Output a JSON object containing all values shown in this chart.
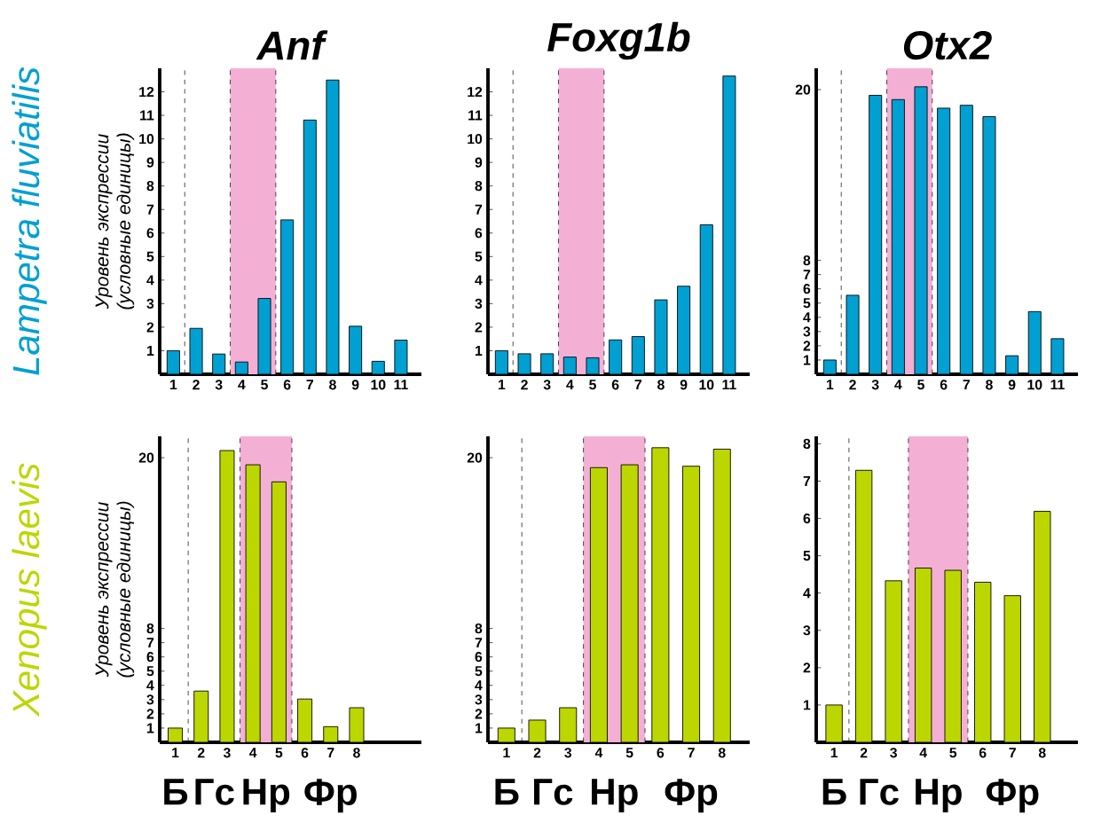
{
  "chart_data": [
    {
      "type": "bar",
      "title": "Anf",
      "ylabel": "Уровень экспрессии\n(условные единицы)",
      "x": [
        1,
        2,
        3,
        4,
        5,
        6,
        7,
        8,
        9,
        10,
        11
      ],
      "values": [
        1.0,
        1.95,
        0.86,
        0.52,
        3.22,
        6.56,
        10.8,
        12.5,
        2.04,
        0.55,
        1.45
      ],
      "color": "#00a0d2",
      "xlim": [
        0.4,
        11.9
      ],
      "ylim": [
        0,
        13
      ],
      "xticks": [
        1,
        2,
        3,
        4,
        5,
        6,
        7,
        8,
        9,
        10,
        11
      ],
      "yticks": [
        1,
        2,
        3,
        4,
        5,
        6,
        7,
        8,
        9,
        10,
        11,
        12
      ],
      "bands": [
        {
          "axis": "x",
          "from": 3.5,
          "to": 5.5,
          "color": "#f4b0d4"
        }
      ],
      "ref_lines": [
        {
          "axis": "x",
          "value": 1.5,
          "line_style": "dashed"
        },
        {
          "axis": "x",
          "value": 3.5,
          "line_style": "dashed"
        },
        {
          "axis": "x",
          "value": 5.5,
          "line_style": "dashed"
        }
      ],
      "annotations": [
        "Lampetra fluviatilis"
      ]
    },
    {
      "type": "bar",
      "title": "Foxg1b",
      "x": [
        1,
        2,
        3,
        4,
        5,
        6,
        7,
        8,
        9,
        10,
        11
      ],
      "values": [
        1.0,
        0.87,
        0.87,
        0.73,
        0.7,
        1.46,
        1.6,
        3.16,
        3.74,
        6.35,
        12.67
      ],
      "color": "#00a0d2",
      "xlim": [
        0.4,
        11.9
      ],
      "ylim": [
        0,
        13
      ],
      "xticks": [
        1,
        2,
        3,
        4,
        5,
        6,
        7,
        8,
        9,
        10,
        11
      ],
      "yticks": [
        1,
        2,
        3,
        4,
        5,
        6,
        7,
        8,
        9,
        10,
        11,
        12
      ],
      "bands": [
        {
          "axis": "x",
          "from": 3.5,
          "to": 5.5,
          "color": "#f4b0d4"
        }
      ],
      "ref_lines": [
        {
          "axis": "x",
          "value": 1.5,
          "line_style": "dashed"
        },
        {
          "axis": "x",
          "value": 3.5,
          "line_style": "dashed"
        },
        {
          "axis": "x",
          "value": 5.5,
          "line_style": "dashed"
        }
      ]
    },
    {
      "type": "bar",
      "title": "Otx2",
      "x": [
        1,
        2,
        3,
        4,
        5,
        6,
        7,
        8,
        9,
        10,
        11
      ],
      "values": [
        1.0,
        5.55,
        19.6,
        19.3,
        20.2,
        18.7,
        18.9,
        18.1,
        1.3,
        4.4,
        2.5
      ],
      "color": "#00a0d2",
      "xlim": [
        0.4,
        11.9
      ],
      "ylim": [
        0,
        21.5
      ],
      "xticks": [
        1,
        2,
        3,
        4,
        5,
        6,
        7,
        8,
        9,
        10,
        11
      ],
      "yticks": [
        1,
        2,
        3,
        4,
        5,
        6,
        7,
        8,
        20
      ],
      "bands": [
        {
          "axis": "x",
          "from": 3.5,
          "to": 5.5,
          "color": "#f4b0d4"
        }
      ],
      "ref_lines": [
        {
          "axis": "x",
          "value": 1.5,
          "line_style": "dashed"
        },
        {
          "axis": "x",
          "value": 3.5,
          "line_style": "dashed"
        },
        {
          "axis": "x",
          "value": 5.5,
          "line_style": "dashed"
        }
      ]
    },
    {
      "type": "bar",
      "ylabel": "Уровень экспрессии\n(условные единицы)",
      "x": [
        1,
        2,
        3,
        4,
        5,
        6,
        7,
        8
      ],
      "values": [
        1.0,
        3.6,
        20.5,
        19.5,
        18.3,
        3.04,
        1.1,
        2.43
      ],
      "color": "#bcd600",
      "xlim": [
        0.4,
        10.5
      ],
      "ylim": [
        0,
        21.5
      ],
      "xticks": [
        1,
        2,
        3,
        4,
        5,
        6,
        7,
        8
      ],
      "yticks": [
        1,
        2,
        3,
        4,
        5,
        6,
        7,
        8,
        20
      ],
      "bands": [
        {
          "axis": "x",
          "from": 3.5,
          "to": 5.5,
          "color": "#f4b0d4"
        }
      ],
      "ref_lines": [
        {
          "axis": "x",
          "value": 1.5,
          "line_style": "dashed"
        },
        {
          "axis": "x",
          "value": 3.5,
          "line_style": "dashed"
        },
        {
          "axis": "x",
          "value": 5.5,
          "line_style": "dashed"
        }
      ],
      "annotations": [
        "Xenopus laevis",
        "Б",
        "Гс",
        "Нр",
        "Фр"
      ]
    },
    {
      "type": "bar",
      "x": [
        1,
        2,
        3,
        4,
        5,
        6,
        7,
        8
      ],
      "values": [
        1.0,
        1.56,
        2.43,
        19.3,
        19.5,
        20.7,
        19.4,
        20.6
      ],
      "color": "#bcd600",
      "xlim": [
        0.4,
        8.9
      ],
      "ylim": [
        0,
        21.5
      ],
      "xticks": [
        1,
        2,
        3,
        4,
        5,
        6,
        7,
        8
      ],
      "yticks": [
        1,
        2,
        3,
        4,
        5,
        6,
        7,
        8,
        20
      ],
      "bands": [
        {
          "axis": "x",
          "from": 3.5,
          "to": 5.5,
          "color": "#f4b0d4"
        }
      ],
      "ref_lines": [
        {
          "axis": "x",
          "value": 1.5,
          "line_style": "dashed"
        },
        {
          "axis": "x",
          "value": 3.5,
          "line_style": "dashed"
        },
        {
          "axis": "x",
          "value": 5.5,
          "line_style": "dashed"
        }
      ],
      "annotations": [
        "Б",
        "Гс",
        "Нр",
        "Фр"
      ]
    },
    {
      "type": "bar",
      "x": [
        1,
        2,
        3,
        4,
        5,
        6,
        7,
        8
      ],
      "values": [
        1.0,
        7.29,
        4.33,
        4.67,
        4.61,
        4.29,
        3.93,
        6.19
      ],
      "color": "#bcd600",
      "xlim": [
        0.4,
        9.2
      ],
      "ylim": [
        0,
        8.2
      ],
      "xticks": [
        1,
        2,
        3,
        4,
        5,
        6,
        7,
        8
      ],
      "yticks": [
        1,
        2,
        3,
        4,
        5,
        6,
        7,
        8
      ],
      "bands": [
        {
          "axis": "x",
          "from": 3.5,
          "to": 5.5,
          "color": "#f4b0d4"
        }
      ],
      "ref_lines": [
        {
          "axis": "x",
          "value": 1.5,
          "line_style": "dashed"
        },
        {
          "axis": "x",
          "value": 3.5,
          "line_style": "dashed"
        },
        {
          "axis": "x",
          "value": 5.5,
          "line_style": "dashed"
        }
      ],
      "annotations": [
        "Б",
        "Гс",
        "Нр",
        "Фр"
      ]
    }
  ]
}
